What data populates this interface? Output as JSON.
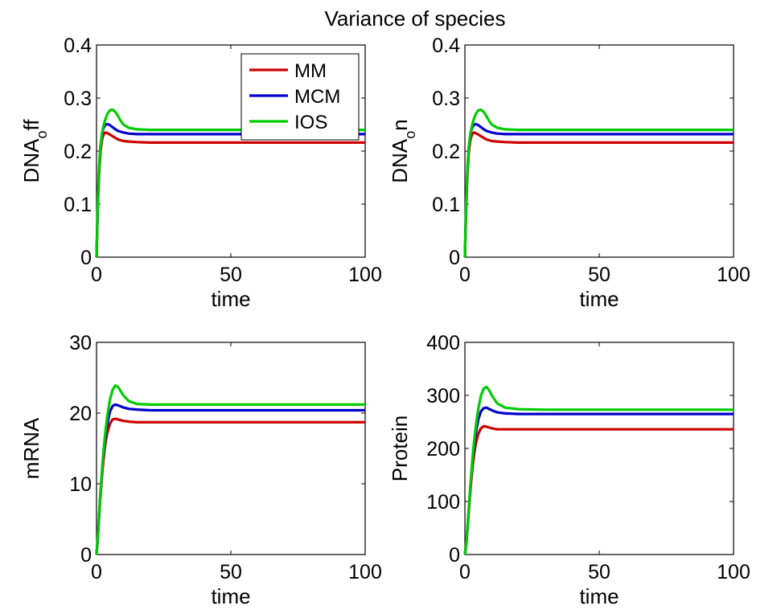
{
  "figure": {
    "title": "Variance of species"
  },
  "colors": {
    "MM": "#cc0000",
    "MCM": "#0000cc",
    "IOS": "#00cc00"
  },
  "chart_data": [
    {
      "type": "line",
      "panel": "top-left",
      "ylabel_main": "DNA",
      "ylabel_sub": "o",
      "ylabel_tail": "ff",
      "xlabel": "time",
      "xlim": [
        0,
        100
      ],
      "ylim": [
        0,
        0.4
      ],
      "xticks": [
        0,
        50,
        100
      ],
      "yticks": [
        0,
        0.1,
        0.2,
        0.3,
        0.4
      ],
      "legend": {
        "placement": "top-right",
        "entries": [
          "MM",
          "MCM",
          "IOS"
        ]
      },
      "series": [
        {
          "name": "MM",
          "color_key": "MM",
          "x": [
            0,
            0.5,
            1,
            1.5,
            2,
            2.5,
            3,
            3.5,
            4,
            5,
            6,
            7,
            8,
            10,
            12,
            15,
            20,
            30,
            50,
            100
          ],
          "y": [
            0,
            0.1,
            0.16,
            0.2,
            0.22,
            0.23,
            0.234,
            0.235,
            0.234,
            0.231,
            0.228,
            0.225,
            0.222,
            0.219,
            0.218,
            0.217,
            0.216,
            0.216,
            0.216,
            0.216
          ]
        },
        {
          "name": "MCM",
          "color_key": "MCM",
          "x": [
            0,
            0.5,
            1,
            1.5,
            2,
            2.5,
            3,
            3.5,
            4,
            5,
            6,
            7,
            8,
            10,
            12,
            15,
            20,
            30,
            50,
            100
          ],
          "y": [
            0,
            0.11,
            0.17,
            0.21,
            0.23,
            0.242,
            0.247,
            0.25,
            0.251,
            0.249,
            0.245,
            0.241,
            0.238,
            0.235,
            0.233,
            0.232,
            0.232,
            0.232,
            0.232,
            0.232
          ]
        },
        {
          "name": "IOS",
          "color_key": "IOS",
          "x": [
            0,
            0.5,
            1,
            1.5,
            2,
            2.5,
            3,
            3.5,
            4,
            5,
            6,
            7,
            8,
            9,
            10,
            12,
            15,
            20,
            30,
            50,
            100
          ],
          "y": [
            0,
            0.11,
            0.17,
            0.21,
            0.232,
            0.245,
            0.255,
            0.263,
            0.27,
            0.277,
            0.278,
            0.274,
            0.266,
            0.257,
            0.25,
            0.244,
            0.241,
            0.24,
            0.24,
            0.24,
            0.24
          ]
        }
      ]
    },
    {
      "type": "line",
      "panel": "top-right",
      "ylabel_main": "DNA",
      "ylabel_sub": "o",
      "ylabel_tail": "n",
      "xlabel": "time",
      "xlim": [
        0,
        100
      ],
      "ylim": [
        0,
        0.4
      ],
      "xticks": [
        0,
        50,
        100
      ],
      "yticks": [
        0,
        0.1,
        0.2,
        0.3,
        0.4
      ],
      "series": [
        {
          "name": "MM",
          "color_key": "MM",
          "x": [
            0,
            0.5,
            1,
            1.5,
            2,
            2.5,
            3,
            3.5,
            4,
            5,
            6,
            7,
            8,
            10,
            12,
            15,
            20,
            30,
            50,
            100
          ],
          "y": [
            0,
            0.1,
            0.16,
            0.2,
            0.22,
            0.23,
            0.234,
            0.235,
            0.234,
            0.231,
            0.228,
            0.225,
            0.222,
            0.219,
            0.218,
            0.217,
            0.216,
            0.216,
            0.216,
            0.216
          ]
        },
        {
          "name": "MCM",
          "color_key": "MCM",
          "x": [
            0,
            0.5,
            1,
            1.5,
            2,
            2.5,
            3,
            3.5,
            4,
            5,
            6,
            7,
            8,
            10,
            12,
            15,
            20,
            30,
            50,
            100
          ],
          "y": [
            0,
            0.11,
            0.17,
            0.21,
            0.23,
            0.242,
            0.247,
            0.25,
            0.251,
            0.249,
            0.245,
            0.241,
            0.238,
            0.235,
            0.233,
            0.232,
            0.232,
            0.232,
            0.232,
            0.232
          ]
        },
        {
          "name": "IOS",
          "color_key": "IOS",
          "x": [
            0,
            0.5,
            1,
            1.5,
            2,
            2.5,
            3,
            3.5,
            4,
            5,
            6,
            7,
            8,
            9,
            10,
            12,
            15,
            20,
            30,
            50,
            100
          ],
          "y": [
            0,
            0.11,
            0.17,
            0.21,
            0.232,
            0.245,
            0.255,
            0.263,
            0.27,
            0.277,
            0.278,
            0.274,
            0.266,
            0.257,
            0.25,
            0.244,
            0.241,
            0.24,
            0.24,
            0.24,
            0.24
          ]
        }
      ]
    },
    {
      "type": "line",
      "panel": "bottom-left",
      "ylabel_main": "mRNA",
      "xlabel": "time",
      "xlim": [
        0,
        100
      ],
      "ylim": [
        0,
        30
      ],
      "xticks": [
        0,
        50,
        100
      ],
      "yticks": [
        0,
        10,
        20,
        30
      ],
      "series": [
        {
          "name": "MM",
          "color_key": "MM",
          "x": [
            0,
            0.5,
            1,
            1.5,
            2,
            2.5,
            3,
            3.5,
            4,
            5,
            6,
            7,
            8,
            10,
            12,
            15,
            20,
            30,
            50,
            100
          ],
          "y": [
            0,
            2.5,
            5.5,
            8.5,
            11,
            13,
            14.8,
            16.2,
            17.2,
            18.5,
            19.1,
            19.2,
            19.1,
            18.9,
            18.8,
            18.7,
            18.7,
            18.7,
            18.7,
            18.7
          ]
        },
        {
          "name": "MCM",
          "color_key": "MCM",
          "x": [
            0,
            0.5,
            1,
            1.5,
            2,
            2.5,
            3,
            3.5,
            4,
            5,
            6,
            7,
            8,
            10,
            12,
            15,
            20,
            30,
            50,
            100
          ],
          "y": [
            0,
            2.6,
            5.7,
            8.8,
            11.5,
            13.7,
            15.6,
            17.2,
            18.5,
            20.2,
            21,
            21.2,
            21.1,
            20.8,
            20.6,
            20.5,
            20.4,
            20.4,
            20.4,
            20.4
          ]
        },
        {
          "name": "IOS",
          "color_key": "IOS",
          "x": [
            0,
            0.5,
            1,
            1.5,
            2,
            2.5,
            3,
            3.5,
            4,
            5,
            6,
            7,
            8,
            9,
            10,
            12,
            15,
            20,
            30,
            50,
            100
          ],
          "y": [
            0,
            2.6,
            5.7,
            8.9,
            11.7,
            14.1,
            16.2,
            18,
            19.6,
            21.9,
            23.3,
            23.9,
            23.7,
            23.1,
            22.5,
            21.7,
            21.3,
            21.2,
            21.2,
            21.2,
            21.2
          ]
        }
      ]
    },
    {
      "type": "line",
      "panel": "bottom-right",
      "ylabel_main": "Protein",
      "xlabel": "time",
      "xlim": [
        0,
        100
      ],
      "ylim": [
        0,
        400
      ],
      "xticks": [
        0,
        50,
        100
      ],
      "yticks": [
        0,
        100,
        200,
        300,
        400
      ],
      "series": [
        {
          "name": "MM",
          "color_key": "MM",
          "x": [
            0,
            0.5,
            1,
            1.5,
            2,
            2.5,
            3,
            3.5,
            4,
            5,
            6,
            7,
            8,
            10,
            12,
            15,
            20,
            30,
            50,
            100
          ],
          "y": [
            0,
            20,
            50,
            85,
            118,
            148,
            172,
            192,
            208,
            228,
            238,
            242,
            241,
            238,
            236,
            236,
            236,
            236,
            236,
            236
          ]
        },
        {
          "name": "MCM",
          "color_key": "MCM",
          "x": [
            0,
            0.5,
            1,
            1.5,
            2,
            2.5,
            3,
            3.5,
            4,
            5,
            6,
            7,
            8,
            10,
            12,
            15,
            20,
            30,
            50,
            100
          ],
          "y": [
            0,
            21,
            52,
            89,
            125,
            158,
            185,
            208,
            228,
            255,
            270,
            276,
            277,
            272,
            268,
            266,
            265,
            265,
            265,
            265
          ]
        },
        {
          "name": "IOS",
          "color_key": "IOS",
          "x": [
            0,
            0.5,
            1,
            1.5,
            2,
            2.5,
            3,
            3.5,
            4,
            5,
            6,
            7,
            8,
            9,
            10,
            12,
            15,
            20,
            30,
            50,
            100
          ],
          "y": [
            0,
            21,
            53,
            90,
            127,
            161,
            191,
            217,
            240,
            275,
            300,
            313,
            316,
            310,
            300,
            285,
            277,
            274,
            273,
            273,
            273
          ]
        }
      ]
    }
  ]
}
